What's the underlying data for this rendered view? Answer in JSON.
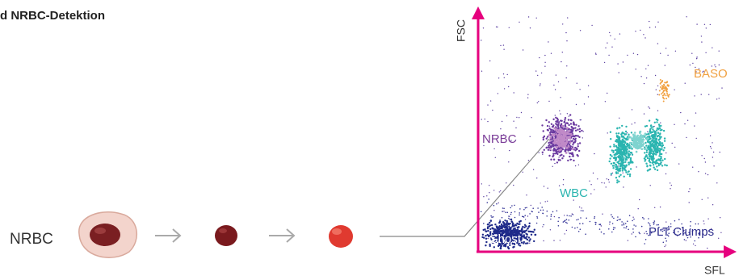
{
  "header": {
    "title": "d NRBC-Detektion"
  },
  "sequence": {
    "label": "NRBC"
  },
  "plot": {
    "y_axis": "FSC",
    "x_axis": "SFL",
    "clusters": {
      "nrbc": "NRBC",
      "wbc": "WBC",
      "baso": "BASO",
      "ghost": "Ghost",
      "plt": "PLT Clumps"
    }
  }
}
